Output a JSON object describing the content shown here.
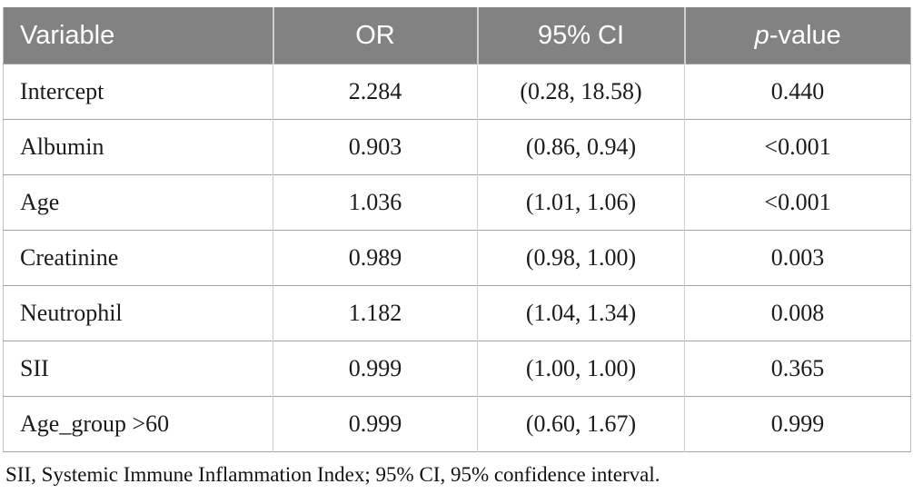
{
  "colors": {
    "header_bg": "#828282",
    "header_text": "#ffffff",
    "body_text": "#1b1b1b",
    "row_line": "#a3a3a3",
    "col_line": "#cccccc"
  },
  "table": {
    "header": {
      "variable": "Variable",
      "or": "OR",
      "ci": "95% CI",
      "p_italic": "p",
      "p_rest": "-value"
    },
    "rows": [
      {
        "variable": "Intercept",
        "or": "2.284",
        "ci": "(0.28, 18.58)",
        "p": "0.440"
      },
      {
        "variable": "Albumin",
        "or": "0.903",
        "ci": "(0.86, 0.94)",
        "p": "<0.001"
      },
      {
        "variable": "Age",
        "or": "1.036",
        "ci": "(1.01, 1.06)",
        "p": "<0.001"
      },
      {
        "variable": "Creatinine",
        "or": "0.989",
        "ci": "(0.98, 1.00)",
        "p": "0.003"
      },
      {
        "variable": "Neutrophil",
        "or": "1.182",
        "ci": "(1.04, 1.34)",
        "p": "0.008"
      },
      {
        "variable": "SII",
        "or": "0.999",
        "ci": "(1.00, 1.00)",
        "p": "0.365"
      },
      {
        "variable": "Age_group >60",
        "or": "0.999",
        "ci": "(0.60, 1.67)",
        "p": "0.999"
      }
    ],
    "footnote": "SII, Systemic Immune Inflammation Index; 95% CI, 95% confidence interval."
  },
  "chart_data": {
    "type": "table",
    "columns": [
      "Variable",
      "OR",
      "95% CI",
      "p-value"
    ],
    "rows": [
      [
        "Intercept",
        "2.284",
        "(0.28, 18.58)",
        "0.440"
      ],
      [
        "Albumin",
        "0.903",
        "(0.86, 0.94)",
        "<0.001"
      ],
      [
        "Age",
        "1.036",
        "(1.01, 1.06)",
        "<0.001"
      ],
      [
        "Creatinine",
        "0.989",
        "(0.98, 1.00)",
        "0.003"
      ],
      [
        "Neutrophil",
        "1.182",
        "(1.04, 1.34)",
        "0.008"
      ],
      [
        "SII",
        "0.999",
        "(1.00, 1.00)",
        "0.365"
      ],
      [
        "Age_group >60",
        "0.999",
        "(0.60, 1.67)",
        "0.999"
      ]
    ],
    "footnote": "SII, Systemic Immune Inflammation Index; 95% CI, 95% confidence interval."
  }
}
